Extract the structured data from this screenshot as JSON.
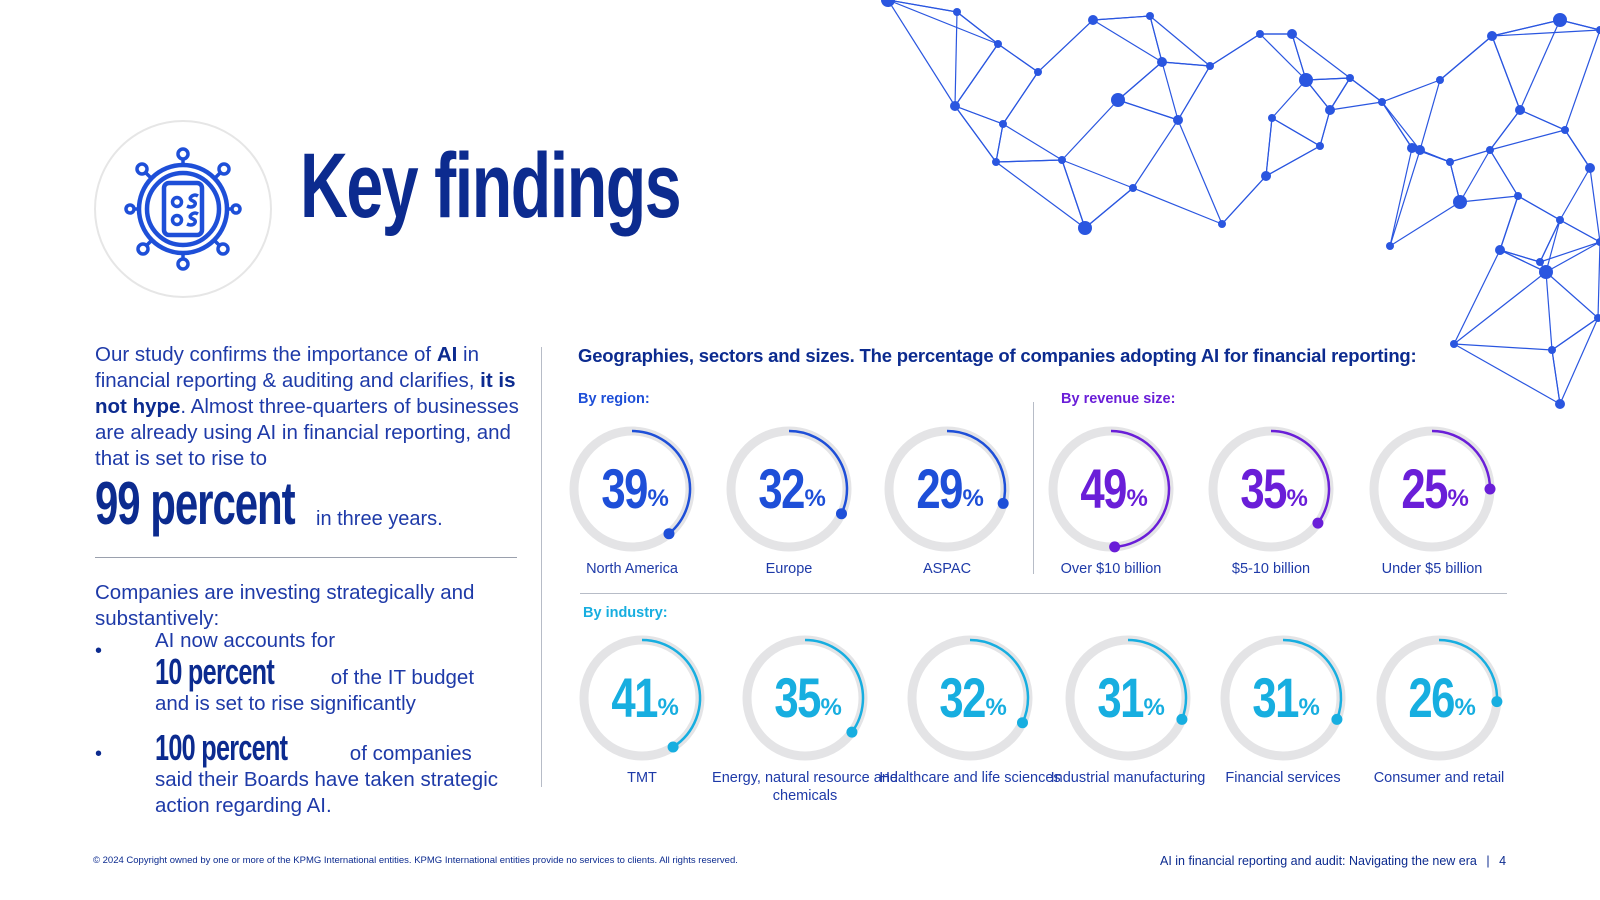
{
  "title": "Key findings",
  "intro": {
    "p1": "Our study confirms the importance of ",
    "p1_bold": "AI",
    "p2": " in financial reporting & auditing and clarifies, ",
    "p2_bold": "it is not hype",
    "p3": ". Almost three-quarters of businesses are already using AI in financial reporting, and that is set to rise to",
    "big_figure": "99 percent",
    "big_suffix": "in three years."
  },
  "invest": {
    "lead": "Companies are investing strategically and substantively:",
    "bullet1_pre": "AI now accounts for ",
    "bullet1_fig": "10 percent",
    "bullet1_post": " of the IT budget and is set to rise significantly",
    "bullet2_fig": "100 percent",
    "bullet2_post": " of companies said their Boards have taken strategic action regarding AI."
  },
  "subtitle": "Geographies, sectors and sizes. The percentage of companies adopting AI for financial reporting:",
  "region": {
    "label": "By region:",
    "items": [
      {
        "value": 39,
        "label": "North America"
      },
      {
        "value": 32,
        "label": "Europe"
      },
      {
        "value": 29,
        "label": "ASPAC"
      }
    ]
  },
  "revenue": {
    "label": "By revenue size:",
    "items": [
      {
        "value": 49,
        "label": "Over $10 billion"
      },
      {
        "value": 35,
        "label": "$5-10 billion"
      },
      {
        "value": 25,
        "label": "Under $5 billion"
      }
    ]
  },
  "industry": {
    "label": "By industry:",
    "items": [
      {
        "value": 41,
        "label": "TMT"
      },
      {
        "value": 35,
        "label": "Energy, natural resource and chemicals"
      },
      {
        "value": 32,
        "label": "Healthcare and life sciences"
      },
      {
        "value": 31,
        "label": "Industrial manufacturing"
      },
      {
        "value": 31,
        "label": "Financial services"
      },
      {
        "value": 26,
        "label": "Consumer and retail"
      }
    ]
  },
  "percent_sign": "%",
  "colors": {
    "region": "#1e4fd8",
    "revenue": "#6a1ed8",
    "industry": "#17aee0",
    "navy": "#0c2b8f"
  },
  "footer": {
    "copyright": "© 2024 Copyright owned by one or more of the KPMG International entities. KPMG International entities provide no services to clients. All rights reserved.",
    "doc_title": "AI in financial reporting and audit: Navigating the new era",
    "page": "4"
  }
}
